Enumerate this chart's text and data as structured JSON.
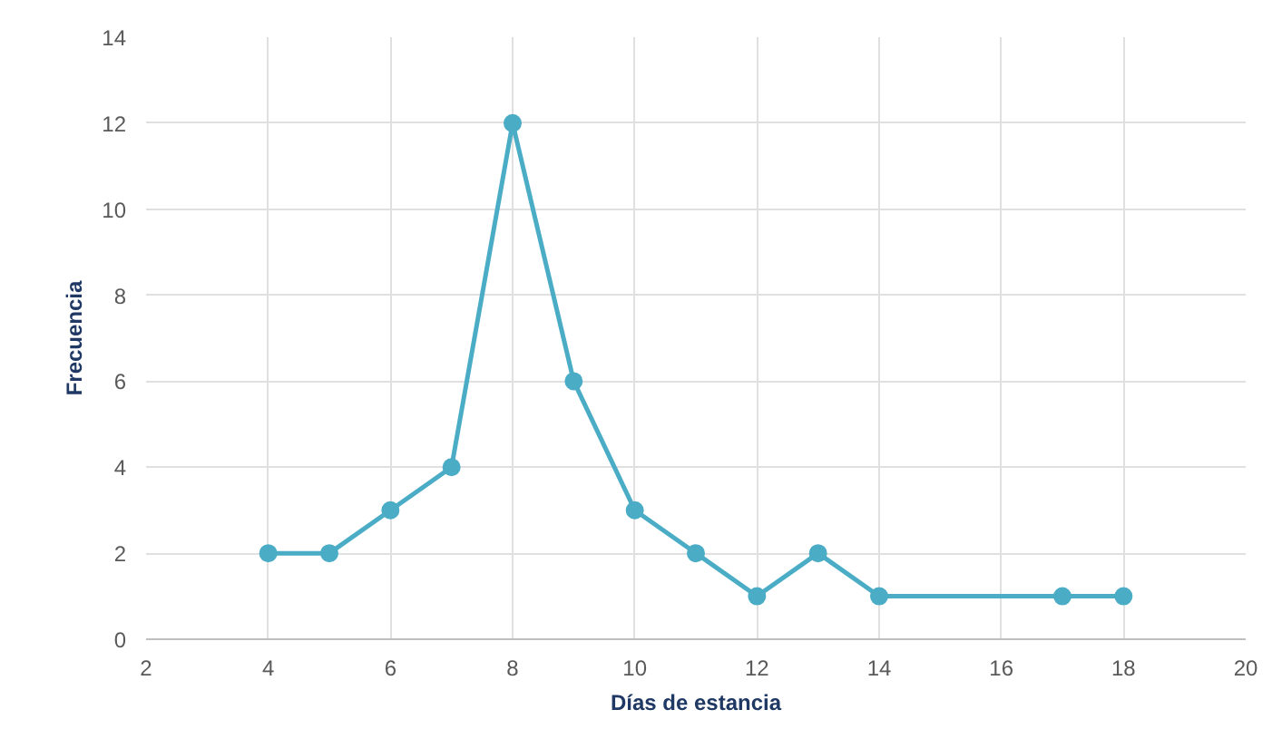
{
  "chart_data": {
    "type": "line",
    "xlabel": "Días de estancia",
    "ylabel": "Frecuencia",
    "x": [
      4,
      5,
      6,
      7,
      8,
      9,
      10,
      11,
      12,
      13,
      14,
      17,
      18
    ],
    "series": [
      {
        "color": "#4bacc6",
        "values": [
          2,
          2,
          3,
          4,
          12,
          6,
          3,
          2,
          1,
          2,
          1,
          1,
          1
        ]
      }
    ],
    "xlim": [
      2,
      20
    ],
    "xticks": [
      2,
      4,
      6,
      8,
      10,
      12,
      14,
      16,
      18,
      20
    ],
    "ylim": [
      0,
      14
    ],
    "yticks": [
      0,
      2,
      4,
      6,
      8,
      10,
      12,
      14
    ],
    "grid": true,
    "marker": "circle"
  }
}
